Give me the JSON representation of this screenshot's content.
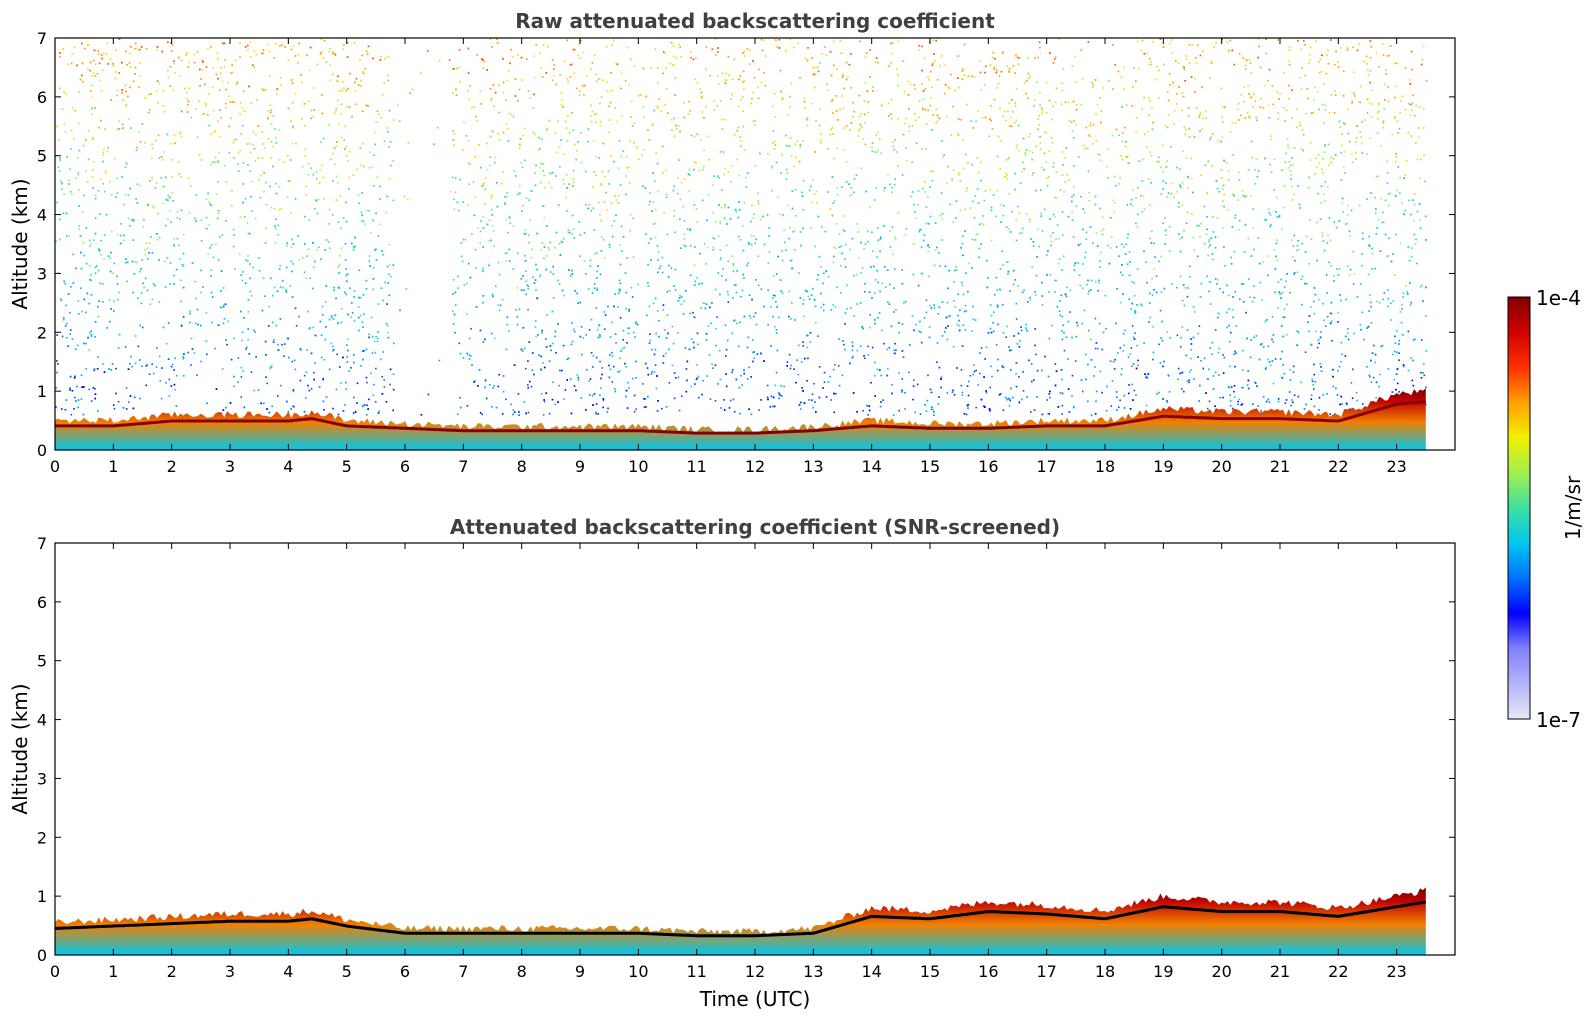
{
  "chart_data": [
    {
      "type": "heatmap",
      "title": "Raw attenuated backscattering coefficient",
      "xlabel": "",
      "ylabel": "Altitude (km)",
      "xlim": [
        0,
        24
      ],
      "ylim": [
        0,
        7
      ],
      "xticks": [
        "0",
        "1",
        "2",
        "3",
        "4",
        "5",
        "6",
        "7",
        "8",
        "9",
        "10",
        "11",
        "12",
        "13",
        "14",
        "15",
        "16",
        "17",
        "18",
        "19",
        "20",
        "21",
        "22",
        "23"
      ],
      "yticks": [
        "0",
        "1",
        "2",
        "3",
        "4",
        "5",
        "6",
        "7"
      ],
      "data_end_hour": 23.5,
      "boundary_layer_top_km": [
        [
          0,
          0.5
        ],
        [
          1,
          0.5
        ],
        [
          2,
          0.6
        ],
        [
          3,
          0.6
        ],
        [
          4,
          0.6
        ],
        [
          4.4,
          0.65
        ],
        [
          5,
          0.5
        ],
        [
          6,
          0.45
        ],
        [
          7,
          0.4
        ],
        [
          8,
          0.4
        ],
        [
          9,
          0.4
        ],
        [
          10,
          0.4
        ],
        [
          11,
          0.35
        ],
        [
          12,
          0.35
        ],
        [
          13,
          0.4
        ],
        [
          14,
          0.5
        ],
        [
          15,
          0.45
        ],
        [
          16,
          0.45
        ],
        [
          17,
          0.5
        ],
        [
          18,
          0.5
        ],
        [
          19,
          0.7
        ],
        [
          20,
          0.65
        ],
        [
          21,
          0.65
        ],
        [
          22,
          0.6
        ],
        [
          23,
          0.95
        ],
        [
          23.5,
          1.0
        ]
      ]
    },
    {
      "type": "heatmap",
      "title": "Attenuated backscattering coefficient (SNR-screened)",
      "xlabel": "Time (UTC)",
      "ylabel": "Altitude (km)",
      "xlim": [
        0,
        24
      ],
      "ylim": [
        0,
        7
      ],
      "xticks": [
        "0",
        "1",
        "2",
        "3",
        "4",
        "5",
        "6",
        "7",
        "8",
        "9",
        "10",
        "11",
        "12",
        "13",
        "14",
        "15",
        "16",
        "17",
        "18",
        "19",
        "20",
        "21",
        "22",
        "23"
      ],
      "yticks": [
        "0",
        "1",
        "2",
        "3",
        "4",
        "5",
        "6",
        "7"
      ],
      "data_end_hour": 23.5,
      "boundary_layer_top_km": [
        [
          0,
          0.55
        ],
        [
          1,
          0.6
        ],
        [
          2,
          0.65
        ],
        [
          3,
          0.7
        ],
        [
          4,
          0.7
        ],
        [
          4.4,
          0.75
        ],
        [
          5,
          0.6
        ],
        [
          6,
          0.45
        ],
        [
          7,
          0.45
        ],
        [
          8,
          0.45
        ],
        [
          9,
          0.45
        ],
        [
          10,
          0.45
        ],
        [
          11,
          0.4
        ],
        [
          12,
          0.4
        ],
        [
          13,
          0.45
        ],
        [
          14,
          0.8
        ],
        [
          15,
          0.75
        ],
        [
          16,
          0.9
        ],
        [
          17,
          0.85
        ],
        [
          18,
          0.75
        ],
        [
          19,
          1.0
        ],
        [
          20,
          0.9
        ],
        [
          21,
          0.9
        ],
        [
          22,
          0.8
        ],
        [
          23,
          1.0
        ],
        [
          23.5,
          1.1
        ]
      ]
    }
  ],
  "colorbar": {
    "max_label": "1e-4",
    "min_label": "1e-7",
    "unit": "1/m/sr",
    "colors": [
      "#e8e8f8",
      "#b4b4f8",
      "#8080ff",
      "#0000ff",
      "#0070ff",
      "#00c8f0",
      "#40e0a0",
      "#a0f050",
      "#f0f000",
      "#ffa000",
      "#ff3000",
      "#d00000",
      "#800000"
    ]
  }
}
